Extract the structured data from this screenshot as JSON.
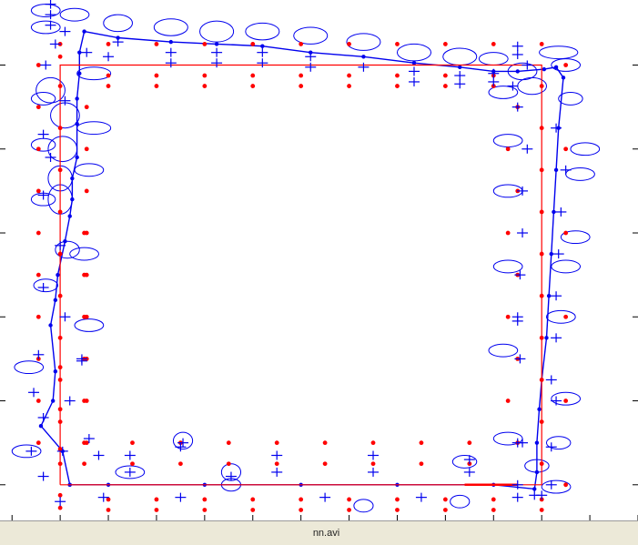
{
  "chart_data": {
    "type": "scatter",
    "title": "",
    "xlabel": "",
    "ylabel": "",
    "grid": false,
    "colors": {
      "ground_truth": "#ff0000",
      "estimate": "#0000ee",
      "background": "#ffffff"
    },
    "reference_path": [
      [
        0,
        0
      ],
      [
        0,
        10
      ],
      [
        10,
        10
      ],
      [
        10,
        0
      ],
      [
        0,
        0
      ]
    ],
    "estimated_path": [
      [
        0.2,
        0
      ],
      [
        0.05,
        0.8
      ],
      [
        -0.4,
        1.4
      ],
      [
        -0.15,
        2.0
      ],
      [
        -0.1,
        2.7
      ],
      [
        -0.2,
        3.8
      ],
      [
        -0.1,
        4.4
      ],
      [
        -0.05,
        5.0
      ],
      [
        0.1,
        5.8
      ],
      [
        0.2,
        6.4
      ],
      [
        0.25,
        6.8
      ],
      [
        0.25,
        7.3
      ],
      [
        0.35,
        7.8
      ],
      [
        0.35,
        8.6
      ],
      [
        0.35,
        9.2
      ],
      [
        0.4,
        9.8
      ],
      [
        0.4,
        10.3
      ],
      [
        0.5,
        10.8
      ],
      [
        1.2,
        10.65
      ],
      [
        2.3,
        10.55
      ],
      [
        3.25,
        10.5
      ],
      [
        4.2,
        10.45
      ],
      [
        5.2,
        10.3
      ],
      [
        6.3,
        10.2
      ],
      [
        7.35,
        10.05
      ],
      [
        8.3,
        9.95
      ],
      [
        9.0,
        9.85
      ],
      [
        9.5,
        9.85
      ],
      [
        10.05,
        9.9
      ],
      [
        10.3,
        9.95
      ],
      [
        10.45,
        9.7
      ],
      [
        10.35,
        8.5
      ],
      [
        10.3,
        7.5
      ],
      [
        10.25,
        6.5
      ],
      [
        10.2,
        5.5
      ],
      [
        10.15,
        4.5
      ],
      [
        10.1,
        3.5
      ],
      [
        10.0,
        2.5
      ],
      [
        9.95,
        1.8
      ],
      [
        9.9,
        1.0
      ],
      [
        9.9,
        0.3
      ],
      [
        9.85,
        -0.1
      ],
      [
        9.0,
        0
      ],
      [
        7.0,
        0
      ],
      [
        5.0,
        0
      ],
      [
        3.0,
        0
      ],
      [
        1.0,
        0
      ],
      [
        0.2,
        0
      ]
    ],
    "ref_points": [
      [
        0,
        -0.55
      ],
      [
        0,
        -0.25
      ],
      [
        0,
        0.5
      ],
      [
        0,
        0.85
      ],
      [
        0,
        1.5
      ],
      [
        0,
        1.8
      ],
      [
        0,
        2.5
      ],
      [
        0,
        2.8
      ],
      [
        0,
        3.5
      ],
      [
        0,
        4.5
      ],
      [
        0,
        5.5
      ],
      [
        0,
        6.5
      ],
      [
        0,
        7.5
      ],
      [
        0,
        8.5
      ],
      [
        0,
        9.5
      ],
      [
        0,
        10.2
      ],
      [
        0,
        10.5
      ],
      [
        -0.45,
        1.0
      ],
      [
        -0.45,
        2.0
      ],
      [
        -0.45,
        3.0
      ],
      [
        -0.45,
        4.0
      ],
      [
        -0.45,
        5.0
      ],
      [
        -0.45,
        6.0
      ],
      [
        -0.45,
        7.0
      ],
      [
        -0.45,
        8.0
      ],
      [
        -0.45,
        9.0
      ],
      [
        -0.45,
        10.0
      ],
      [
        0.55,
        1.0
      ],
      [
        0.55,
        2.0
      ],
      [
        0.55,
        3.0
      ],
      [
        0.55,
        4.0
      ],
      [
        0.55,
        5.0
      ],
      [
        0.55,
        6.0
      ],
      [
        0.55,
        7.0
      ],
      [
        0.55,
        8.0
      ],
      [
        0.55,
        9.0
      ],
      [
        1.0,
        10.5
      ],
      [
        2.0,
        10.5
      ],
      [
        3.0,
        10.5
      ],
      [
        4.0,
        10.5
      ],
      [
        5.0,
        10.5
      ],
      [
        6.0,
        10.5
      ],
      [
        7.0,
        10.5
      ],
      [
        8.0,
        10.5
      ],
      [
        9.0,
        10.5
      ],
      [
        10.0,
        10.5
      ],
      [
        1.0,
        9.5
      ],
      [
        2.0,
        9.5
      ],
      [
        3.0,
        9.5
      ],
      [
        4.0,
        9.5
      ],
      [
        5.0,
        9.5
      ],
      [
        6.0,
        9.5
      ],
      [
        7.0,
        9.5
      ],
      [
        8.0,
        9.5
      ],
      [
        9.0,
        9.5
      ],
      [
        1.0,
        9.75
      ],
      [
        2.0,
        9.75
      ],
      [
        3.0,
        9.75
      ],
      [
        4.0,
        9.75
      ],
      [
        5.0,
        9.75
      ],
      [
        6.0,
        9.75
      ],
      [
        7.0,
        9.75
      ],
      [
        8.0,
        9.75
      ],
      [
        9.0,
        9.75
      ],
      [
        10.5,
        10.0
      ],
      [
        10.0,
        9.5
      ],
      [
        10.0,
        8.5
      ],
      [
        10.0,
        7.5
      ],
      [
        10.0,
        6.5
      ],
      [
        10.0,
        5.5
      ],
      [
        10.0,
        4.5
      ],
      [
        10.0,
        3.5
      ],
      [
        10.0,
        2.5
      ],
      [
        10.0,
        1.5
      ],
      [
        10.0,
        0.5
      ],
      [
        9.5,
        9.0
      ],
      [
        9.5,
        7.0
      ],
      [
        9.5,
        5.0
      ],
      [
        9.5,
        3.0
      ],
      [
        9.5,
        1.0
      ],
      [
        10.5,
        8.0
      ],
      [
        10.5,
        6.0
      ],
      [
        10.5,
        4.0
      ],
      [
        10.5,
        2.0
      ],
      [
        10.5,
        0.0
      ],
      [
        1.0,
        -0.35
      ],
      [
        2.0,
        -0.35
      ],
      [
        3.0,
        -0.35
      ],
      [
        4.0,
        -0.35
      ],
      [
        5.0,
        -0.35
      ],
      [
        6.0,
        -0.35
      ],
      [
        7.0,
        -0.35
      ],
      [
        8.0,
        -0.35
      ],
      [
        9.0,
        -0.35
      ],
      [
        10.0,
        -0.35
      ],
      [
        1.0,
        -0.6
      ],
      [
        2.0,
        -0.6
      ],
      [
        3.0,
        -0.6
      ],
      [
        4.0,
        -0.6
      ],
      [
        5.0,
        -0.6
      ],
      [
        6.0,
        -0.6
      ],
      [
        7.0,
        -0.6
      ],
      [
        8.0,
        -0.6
      ],
      [
        9.0,
        -0.6
      ],
      [
        10.0,
        -0.6
      ],
      [
        0.5,
        0.5
      ],
      [
        1.5,
        0.5
      ],
      [
        2.5,
        0.5
      ],
      [
        3.5,
        0.5
      ],
      [
        4.5,
        0.5
      ],
      [
        5.5,
        0.5
      ],
      [
        6.5,
        0.5
      ],
      [
        7.5,
        0.5
      ],
      [
        8.5,
        0.5
      ],
      [
        0.5,
        1.0
      ],
      [
        1.5,
        1.0
      ],
      [
        2.5,
        1.0
      ],
      [
        3.5,
        1.0
      ],
      [
        4.5,
        1.0
      ],
      [
        5.5,
        1.0
      ],
      [
        6.5,
        1.0
      ],
      [
        7.5,
        1.0
      ],
      [
        8.5,
        1.0
      ],
      [
        0.5,
        2.0
      ],
      [
        0.5,
        3.0
      ],
      [
        0.5,
        4.0
      ],
      [
        0.5,
        5.0
      ],
      [
        0.5,
        6.0
      ],
      [
        9.3,
        2.0
      ],
      [
        9.3,
        4.0
      ],
      [
        9.3,
        6.0
      ],
      [
        9.3,
        8.0
      ]
    ],
    "uncertainty": [
      [
        -0.3,
        11.3,
        0.3,
        0.15
      ],
      [
        -0.3,
        10.9,
        0.3,
        0.15
      ],
      [
        0.3,
        11.2,
        0.3,
        0.15
      ],
      [
        1.2,
        11.0,
        0.3,
        0.2
      ],
      [
        2.3,
        10.9,
        0.35,
        0.2
      ],
      [
        3.25,
        10.8,
        0.35,
        0.25
      ],
      [
        4.2,
        10.8,
        0.35,
        0.2
      ],
      [
        5.2,
        10.7,
        0.35,
        0.2
      ],
      [
        6.3,
        10.55,
        0.35,
        0.2
      ],
      [
        7.35,
        10.3,
        0.35,
        0.2
      ],
      [
        8.3,
        10.2,
        0.35,
        0.2
      ],
      [
        9.0,
        10.15,
        0.3,
        0.15
      ],
      [
        10.35,
        10.3,
        0.4,
        0.15
      ],
      [
        10.5,
        10.0,
        0.3,
        0.15
      ],
      [
        -0.2,
        9.4,
        0.3,
        0.3
      ],
      [
        0.1,
        8.8,
        0.3,
        0.3
      ],
      [
        0.05,
        8.0,
        0.3,
        0.3
      ],
      [
        0.0,
        7.3,
        0.25,
        0.3
      ],
      [
        0.0,
        6.8,
        0.25,
        0.35
      ],
      [
        0.15,
        5.6,
        0.25,
        0.2
      ],
      [
        -0.35,
        9.2,
        0.25,
        0.15
      ],
      [
        -0.35,
        8.1,
        0.25,
        0.15
      ],
      [
        -0.35,
        6.8,
        0.25,
        0.15
      ],
      [
        -0.3,
        4.75,
        0.25,
        0.15
      ],
      [
        -0.65,
        2.8,
        0.3,
        0.15
      ],
      [
        -0.7,
        0.8,
        0.3,
        0.15
      ],
      [
        0.7,
        9.8,
        0.35,
        0.15
      ],
      [
        0.7,
        8.5,
        0.35,
        0.15
      ],
      [
        0.6,
        7.5,
        0.3,
        0.15
      ],
      [
        0.5,
        5.5,
        0.3,
        0.15
      ],
      [
        0.6,
        3.8,
        0.3,
        0.15
      ],
      [
        9.6,
        9.85,
        0.3,
        0.2
      ],
      [
        9.8,
        9.5,
        0.3,
        0.2
      ],
      [
        10.6,
        9.2,
        0.25,
        0.15
      ],
      [
        10.9,
        8.0,
        0.3,
        0.15
      ],
      [
        10.8,
        7.4,
        0.3,
        0.15
      ],
      [
        10.7,
        5.9,
        0.3,
        0.15
      ],
      [
        10.5,
        5.2,
        0.3,
        0.15
      ],
      [
        10.4,
        4.0,
        0.3,
        0.15
      ],
      [
        10.5,
        2.05,
        0.3,
        0.15
      ],
      [
        10.35,
        1.0,
        0.25,
        0.15
      ],
      [
        9.2,
        9.35,
        0.3,
        0.15
      ],
      [
        9.3,
        8.2,
        0.3,
        0.15
      ],
      [
        9.3,
        7.0,
        0.3,
        0.15
      ],
      [
        9.3,
        5.2,
        0.3,
        0.15
      ],
      [
        9.2,
        3.2,
        0.3,
        0.15
      ],
      [
        9.3,
        1.1,
        0.3,
        0.15
      ],
      [
        1.45,
        0.3,
        0.3,
        0.15
      ],
      [
        2.55,
        1.05,
        0.2,
        0.2
      ],
      [
        3.55,
        0.0,
        0.2,
        0.15
      ],
      [
        3.55,
        0.3,
        0.2,
        0.2
      ],
      [
        6.3,
        -0.5,
        0.2,
        0.15
      ],
      [
        8.3,
        -0.4,
        0.2,
        0.15
      ],
      [
        8.4,
        0.55,
        0.25,
        0.15
      ],
      [
        9.9,
        0.45,
        0.25,
        0.15
      ],
      [
        10.3,
        -0.05,
        0.3,
        0.15
      ]
    ],
    "crosses": [
      [
        -0.2,
        11.45
      ],
      [
        -0.2,
        11.2
      ],
      [
        -0.2,
        10.95
      ],
      [
        -0.1,
        10.5
      ],
      [
        0.1,
        10.8
      ],
      [
        0.55,
        10.3
      ],
      [
        1.0,
        10.2
      ],
      [
        1.2,
        10.55
      ],
      [
        2.3,
        10.3
      ],
      [
        2.3,
        10.05
      ],
      [
        3.25,
        10.3
      ],
      [
        3.25,
        10.05
      ],
      [
        4.2,
        10.3
      ],
      [
        4.2,
        10.05
      ],
      [
        5.2,
        10.2
      ],
      [
        5.2,
        9.95
      ],
      [
        6.3,
        9.95
      ],
      [
        7.35,
        9.85
      ],
      [
        7.35,
        9.6
      ],
      [
        8.3,
        9.75
      ],
      [
        8.3,
        9.55
      ],
      [
        9.0,
        9.8
      ],
      [
        9.0,
        9.6
      ],
      [
        9.5,
        10.25
      ],
      [
        9.5,
        10.45
      ],
      [
        9.7,
        10.0
      ],
      [
        -0.3,
        10.0
      ],
      [
        0.1,
        9.15
      ],
      [
        -0.35,
        8.35
      ],
      [
        -0.2,
        7.8
      ],
      [
        -0.35,
        6.9
      ],
      [
        0.0,
        5.7
      ],
      [
        -0.35,
        4.7
      ],
      [
        -0.45,
        3.1
      ],
      [
        -0.55,
        2.2
      ],
      [
        -0.35,
        1.6
      ],
      [
        0.05,
        0.8
      ],
      [
        -0.6,
        0.8
      ],
      [
        -0.35,
        0.2
      ],
      [
        0.0,
        -0.4
      ],
      [
        0.1,
        4.0
      ],
      [
        0.45,
        3.0
      ],
      [
        0.45,
        2.95
      ],
      [
        0.2,
        2.0
      ],
      [
        0.6,
        1.1
      ],
      [
        0.8,
        0.7
      ],
      [
        9.4,
        9.5
      ],
      [
        9.5,
        9.0
      ],
      [
        9.7,
        8.0
      ],
      [
        9.6,
        7.0
      ],
      [
        9.6,
        6.0
      ],
      [
        9.55,
        5.0
      ],
      [
        9.5,
        4.0
      ],
      [
        9.5,
        3.9
      ],
      [
        9.55,
        3.0
      ],
      [
        9.5,
        1.0
      ],
      [
        9.6,
        1.0
      ],
      [
        10.3,
        8.5
      ],
      [
        10.5,
        7.5
      ],
      [
        10.4,
        6.5
      ],
      [
        10.35,
        5.5
      ],
      [
        10.3,
        4.5
      ],
      [
        10.3,
        3.5
      ],
      [
        10.2,
        2.5
      ],
      [
        10.3,
        2.0
      ],
      [
        10.2,
        0.9
      ],
      [
        0.9,
        -0.3
      ],
      [
        1.45,
        0.7
      ],
      [
        1.45,
        0.3
      ],
      [
        2.5,
        -0.3
      ],
      [
        3.55,
        0.2
      ],
      [
        4.5,
        0.7
      ],
      [
        4.5,
        0.3
      ],
      [
        5.5,
        -0.3
      ],
      [
        6.5,
        0.7
      ],
      [
        6.5,
        0.3
      ],
      [
        7.5,
        -0.3
      ],
      [
        8.5,
        0.6
      ],
      [
        8.5,
        0.3
      ],
      [
        9.5,
        -0.3
      ],
      [
        9.5,
        0.0
      ],
      [
        9.85,
        -0.25
      ],
      [
        10.0,
        -0.25
      ],
      [
        10.2,
        0.0
      ],
      [
        2.55,
        1.0
      ],
      [
        2.5,
        0.9
      ]
    ],
    "heading_mark": [
      [
        8.4,
        0.0
      ],
      [
        9.5,
        0.0
      ]
    ],
    "ylim": [
      -0.85,
      11.55
    ],
    "xlim": [
      -1.25,
      12.0
    ],
    "xticks": [
      -1,
      0,
      1,
      2,
      3,
      4,
      5,
      6,
      7,
      8,
      9,
      10,
      11,
      12
    ],
    "yticks": [
      0,
      2,
      4,
      6,
      8,
      10
    ]
  },
  "statusbar": {
    "filename": "nn.avi"
  }
}
